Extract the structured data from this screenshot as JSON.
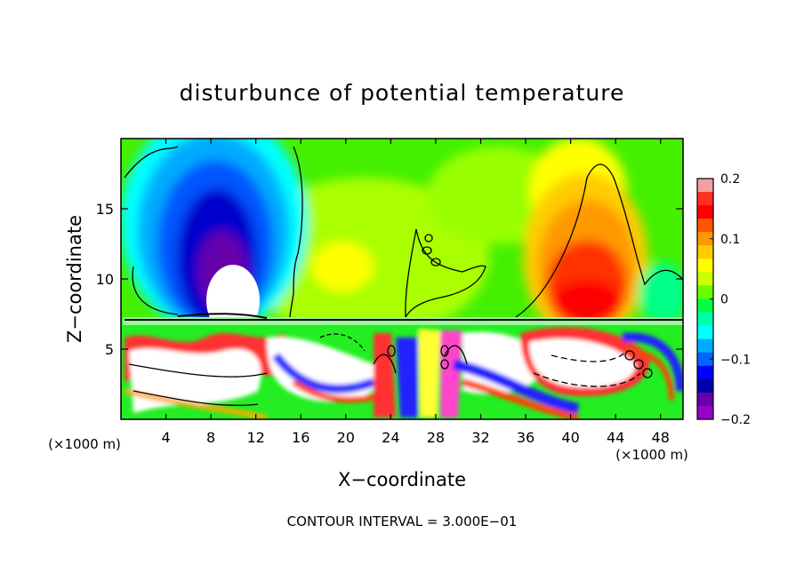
{
  "chart_data": {
    "type": "heatmap",
    "title": "disturbunce of potential temperature",
    "xlabel": "X−coordinate",
    "ylabel": "Z−coordinate",
    "xunit_left": "(×1000 m)",
    "xunit_right": "(×1000 m)",
    "x_range": [
      0,
      50
    ],
    "y_range": [
      0,
      20
    ],
    "x_ticks": [
      4,
      8,
      12,
      16,
      20,
      24,
      28,
      32,
      36,
      40,
      44,
      48
    ],
    "y_ticks": [
      5,
      10,
      15
    ],
    "x_ticks_labels": [
      "4",
      "8",
      "12",
      "16",
      "20",
      "24",
      "28",
      "32",
      "36",
      "40",
      "44",
      "48"
    ],
    "y_ticks_labels": [
      "5",
      "10",
      "15"
    ],
    "colorbar": {
      "range": [
        -0.2,
        0.2
      ],
      "ticks": [
        0.2,
        0.1,
        0,
        -0.1,
        -0.2
      ],
      "tick_labels": [
        "0.2",
        "0.1",
        "0",
        "−0.1",
        "−0.2"
      ],
      "colors": [
        "#f0a0a0",
        "#ff3020",
        "#ff0000",
        "#ff5500",
        "#ff9900",
        "#ffcc00",
        "#ffff00",
        "#ccff00",
        "#66ff00",
        "#00ff44",
        "#00ffaa",
        "#00ffff",
        "#00aaff",
        "#0066ff",
        "#0000ff",
        "#0000aa",
        "#6600aa",
        "#9900cc"
      ]
    },
    "features": [
      {
        "name": "cold-anomaly",
        "x": 9,
        "z": 12,
        "value": -0.2
      },
      {
        "name": "warm-anomaly",
        "x": 41,
        "z": 10,
        "value": 0.2
      },
      {
        "name": "mixed-layer",
        "z_top": 7.3
      }
    ],
    "footer": "CONTOUR INTERVAL = 3.000E−01"
  }
}
